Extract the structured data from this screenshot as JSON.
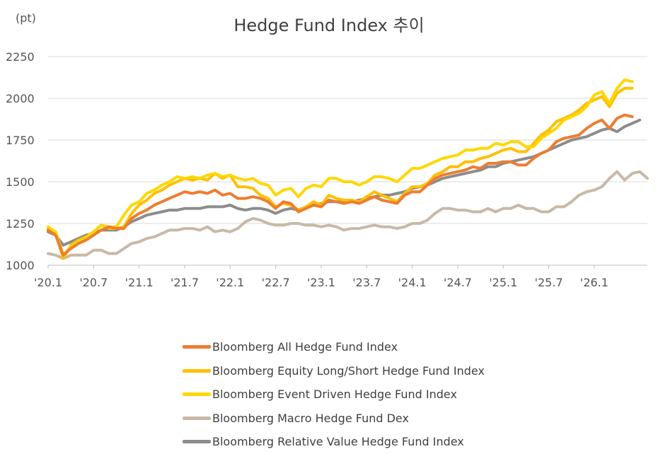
{
  "chart_data": {
    "type": "line",
    "title": "Hedge Fund Index 추이",
    "ylabel": "(pt)",
    "xlabel": "",
    "ylim": [
      1000,
      2250
    ],
    "yticks": [
      1000,
      1250,
      1500,
      1750,
      2000,
      2250
    ],
    "xtick_labels": [
      "'20.1",
      "'20.7",
      "'21.1",
      "'21.7",
      "'22.1",
      "'22.7",
      "'23.1",
      "'23.7",
      "'24.1",
      "'24.7",
      "'25.1",
      "'25.7",
      "'26.1"
    ],
    "x_start": "2020-01",
    "grid": "horizontal",
    "legend_position": "bottom",
    "series": [
      {
        "name": "Bloomberg All Hedge Fund Index",
        "color": "#ED7D31",
        "values": [
          1210,
          1180,
          1060,
          1100,
          1130,
          1150,
          1180,
          1210,
          1230,
          1220,
          1220,
          1280,
          1310,
          1330,
          1360,
          1380,
          1400,
          1420,
          1440,
          1430,
          1440,
          1430,
          1450,
          1420,
          1430,
          1400,
          1400,
          1410,
          1400,
          1380,
          1340,
          1380,
          1370,
          1320,
          1340,
          1360,
          1350,
          1390,
          1380,
          1370,
          1380,
          1370,
          1390,
          1410,
          1390,
          1380,
          1370,
          1420,
          1440,
          1440,
          1480,
          1520,
          1540,
          1550,
          1560,
          1570,
          1590,
          1580,
          1610,
          1610,
          1620,
          1620,
          1600,
          1600,
          1640,
          1670,
          1690,
          1740,
          1760,
          1770,
          1780,
          1820,
          1850,
          1870,
          1820,
          1880,
          1900,
          1890
        ]
      },
      {
        "name": "Bloomberg Equity Long/Short Hedge Fund Index",
        "color": "#FFC000",
        "values": [
          1220,
          1190,
          1040,
          1120,
          1150,
          1170,
          1200,
          1240,
          1220,
          1220,
          1230,
          1310,
          1360,
          1390,
          1430,
          1450,
          1480,
          1500,
          1520,
          1510,
          1520,
          1510,
          1550,
          1520,
          1540,
          1470,
          1470,
          1460,
          1420,
          1400,
          1350,
          1370,
          1360,
          1330,
          1350,
          1380,
          1360,
          1420,
          1400,
          1390,
          1390,
          1380,
          1410,
          1440,
          1420,
          1400,
          1380,
          1430,
          1470,
          1470,
          1490,
          1540,
          1560,
          1590,
          1590,
          1620,
          1620,
          1640,
          1650,
          1670,
          1690,
          1700,
          1680,
          1680,
          1730,
          1780,
          1810,
          1860,
          1880,
          1900,
          1930,
          1970,
          1990,
          2010,
          1950,
          2030,
          2060,
          2060
        ]
      },
      {
        "name": "Bloomberg Event Driven Hedge Fund Index",
        "color": "#FFD700",
        "values": [
          1230,
          1200,
          1060,
          1110,
          1140,
          1160,
          1200,
          1240,
          1230,
          1230,
          1300,
          1360,
          1380,
          1430,
          1450,
          1480,
          1500,
          1530,
          1520,
          1530,
          1520,
          1540,
          1550,
          1530,
          1540,
          1520,
          1510,
          1520,
          1490,
          1480,
          1420,
          1450,
          1460,
          1410,
          1460,
          1480,
          1470,
          1520,
          1520,
          1500,
          1500,
          1480,
          1500,
          1530,
          1530,
          1520,
          1500,
          1540,
          1580,
          1580,
          1600,
          1620,
          1640,
          1650,
          1660,
          1690,
          1690,
          1700,
          1700,
          1730,
          1720,
          1740,
          1740,
          1710,
          1710,
          1760,
          1790,
          1820,
          1870,
          1890,
          1910,
          1950,
          2020,
          2040,
          1970,
          2060,
          2110,
          2100
        ]
      },
      {
        "name": "Bloomberg Macro Hedge Fund Dex",
        "color": "#C8B9A6",
        "values": [
          1070,
          1060,
          1040,
          1060,
          1060,
          1060,
          1090,
          1090,
          1070,
          1070,
          1100,
          1130,
          1140,
          1160,
          1170,
          1190,
          1210,
          1210,
          1220,
          1220,
          1210,
          1230,
          1200,
          1210,
          1200,
          1220,
          1260,
          1280,
          1270,
          1250,
          1240,
          1240,
          1250,
          1250,
          1240,
          1240,
          1230,
          1240,
          1230,
          1210,
          1220,
          1220,
          1230,
          1240,
          1230,
          1230,
          1220,
          1230,
          1250,
          1250,
          1270,
          1310,
          1340,
          1340,
          1330,
          1330,
          1320,
          1320,
          1340,
          1320,
          1340,
          1340,
          1360,
          1340,
          1340,
          1320,
          1320,
          1350,
          1350,
          1380,
          1420,
          1440,
          1450,
          1470,
          1520,
          1560,
          1510,
          1550,
          1560,
          1520
        ]
      },
      {
        "name": "Bloomberg Relative Value Hedge Fund Index",
        "color": "#8C8C8C",
        "values": [
          1200,
          1180,
          1120,
          1140,
          1160,
          1180,
          1190,
          1210,
          1210,
          1210,
          1230,
          1260,
          1280,
          1300,
          1310,
          1320,
          1330,
          1330,
          1340,
          1340,
          1340,
          1350,
          1350,
          1350,
          1360,
          1340,
          1330,
          1340,
          1340,
          1330,
          1310,
          1330,
          1340,
          1330,
          1350,
          1360,
          1370,
          1380,
          1380,
          1380,
          1380,
          1390,
          1400,
          1410,
          1420,
          1420,
          1430,
          1440,
          1460,
          1470,
          1480,
          1500,
          1520,
          1530,
          1540,
          1550,
          1560,
          1570,
          1590,
          1590,
          1610,
          1620,
          1630,
          1640,
          1650,
          1670,
          1690,
          1710,
          1730,
          1750,
          1760,
          1770,
          1790,
          1810,
          1820,
          1800,
          1830,
          1850,
          1870
        ]
      }
    ]
  }
}
